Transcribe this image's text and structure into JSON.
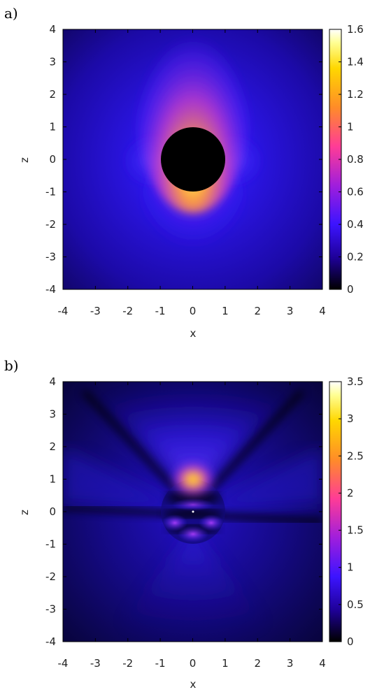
{
  "chart_data": [
    {
      "type": "heatmap",
      "panel_label": "a)",
      "xlabel": "x",
      "ylabel": "z",
      "xlim": [
        -4,
        4
      ],
      "ylim": [
        -4,
        4
      ],
      "xticks": [
        "-4",
        "-3",
        "-2",
        "-1",
        "0",
        "1",
        "2",
        "3",
        "4"
      ],
      "yticks": [
        "-4",
        "-3",
        "-2",
        "-1",
        "0",
        "1",
        "2",
        "3",
        "4"
      ],
      "colorbar": {
        "min": 0,
        "max": 1.6,
        "ticks": [
          "0",
          "0.2",
          "0.4",
          "0.6",
          "0.8",
          "1",
          "1.2",
          "1.4",
          "1.6"
        ]
      },
      "colormap": [
        "#000000",
        "#1e0096",
        "#3c14ff",
        "#a01edc",
        "#ff3c96",
        "#ff8c28",
        "#ffd700",
        "#ffff96",
        "#ffffff"
      ],
      "sphere": {
        "center": [
          0,
          0
        ],
        "radius": 1,
        "fill": "#000000"
      }
    },
    {
      "type": "heatmap",
      "panel_label": "b)",
      "xlabel": "x",
      "ylabel": "z",
      "xlim": [
        -4,
        4
      ],
      "ylim": [
        -4,
        4
      ],
      "xticks": [
        "-4",
        "-3",
        "-2",
        "-1",
        "0",
        "1",
        "2",
        "3",
        "4"
      ],
      "yticks": [
        "-4",
        "-3",
        "-2",
        "-1",
        "0",
        "1",
        "2",
        "3",
        "4"
      ],
      "colorbar": {
        "min": 0,
        "max": 3.5,
        "ticks": [
          "0",
          "0.5",
          "1",
          "1.5",
          "2",
          "2.5",
          "3",
          "3.5"
        ]
      },
      "colormap": [
        "#000000",
        "#1e0096",
        "#3c14ff",
        "#a01edc",
        "#ff3c96",
        "#ff8c28",
        "#ffd700",
        "#ffff96",
        "#ffffff"
      ]
    }
  ]
}
